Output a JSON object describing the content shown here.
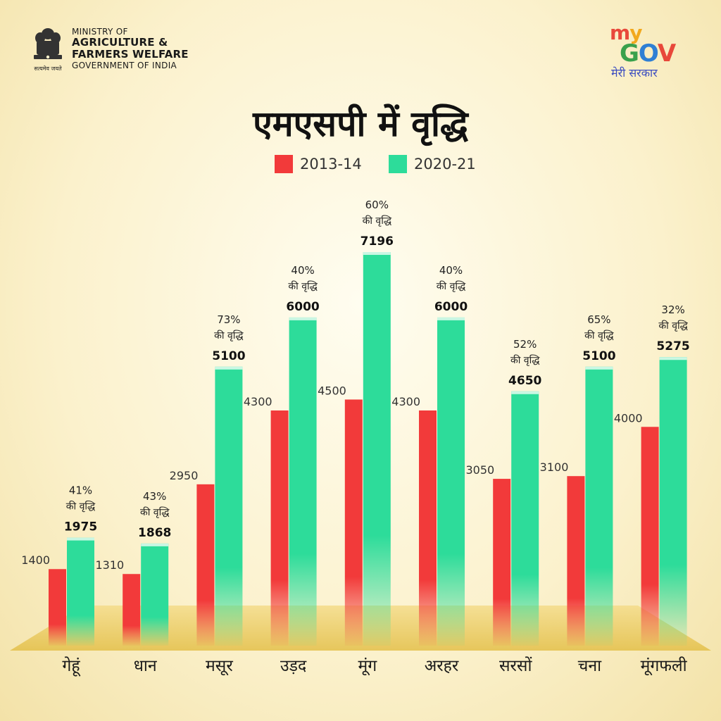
{
  "header": {
    "ministry_line1": "MINISTRY OF",
    "ministry_line2": "AGRICULTURE &",
    "ministry_line3": "FARMERS WELFARE",
    "ministry_line4": "GOVERNMENT OF INDIA",
    "emblem_motto": "सत्यमेव जयते",
    "logo_my": "my",
    "logo_gov": "GOV",
    "logo_tagline": "मेरी सरकार"
  },
  "colors": {
    "series_2013": "#f23a3a",
    "series_2020": "#2ddc9a",
    "logo_m": "#e8483a",
    "logo_y": "#f2a81d",
    "logo_g": "#3aa14c",
    "logo_o": "#2f7fd4",
    "logo_v": "#e8483a"
  },
  "chart_data": {
    "type": "bar",
    "title": "एमएसपी में वृद्धि",
    "categories": [
      "गेहूं",
      "धान",
      "मसूर",
      "उड़द",
      "मूंग",
      "अरहर",
      "सरसों",
      "चना",
      "मूंगफली"
    ],
    "series": [
      {
        "name": "2013-14",
        "values": [
          1400,
          1310,
          2950,
          4300,
          4500,
          4300,
          3050,
          3100,
          4000
        ]
      },
      {
        "name": "2020-21",
        "values": [
          1975,
          1868,
          5100,
          6000,
          7196,
          6000,
          4650,
          5100,
          5275
        ]
      }
    ],
    "growth_percent": [
      "41%",
      "43%",
      "73%",
      "40%",
      "60%",
      "40%",
      "52%",
      "65%",
      "32%"
    ],
    "growth_suffix": "की वृद्धि",
    "legend_position": "top-center",
    "grid": false
  }
}
